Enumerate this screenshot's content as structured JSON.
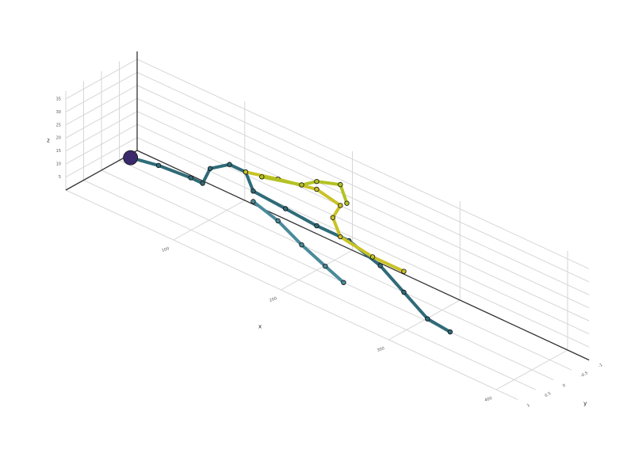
{
  "chart_data": {
    "type": "scatter3d",
    "axis_labels": {
      "x": "x",
      "y": "y",
      "z": "z"
    },
    "xlim": [
      0,
      420
    ],
    "xticks": [
      100,
      200,
      300,
      400
    ],
    "ylim": [
      -1,
      1
    ],
    "yticks": [
      -1,
      -0.5,
      0,
      0.5,
      1
    ],
    "zlim": [
      0,
      38
    ],
    "zticks": [
      5,
      10,
      15,
      20,
      25,
      30,
      35
    ],
    "grid": true,
    "series": [
      {
        "color": "#2f6b78",
        "x": [
          27,
          53,
          83,
          94,
          101,
          119,
          134,
          141,
          171,
          200,
          230,
          259,
          281,
          303,
          324
        ],
        "y": [
          0,
          0,
          0,
          0,
          0,
          0,
          0,
          0,
          0,
          0,
          0,
          0,
          0,
          0,
          0
        ],
        "z": [
          10,
          12,
          13,
          13,
          20,
          25,
          25,
          19,
          18,
          17,
          17,
          13,
          7,
          1,
          0
        ]
      },
      {
        "color": "#c9c227",
        "x": [
          134,
          164,
          200,
          222,
          215,
          222,
          252,
          281
        ],
        "y": [
          0,
          0,
          0,
          0,
          0,
          0,
          0,
          0
        ],
        "z": [
          25,
          28,
          31,
          29,
          23,
          17,
          15,
          15
        ]
      },
      {
        "color": "#b3c224",
        "x": [
          149,
          186,
          200,
          222,
          228
        ],
        "y": [
          0,
          0,
          0,
          0,
          0
        ],
        "z": [
          26,
          30,
          34,
          37,
          31
        ]
      },
      {
        "color": "#4a8a9a",
        "x": [
          141,
          164,
          186,
          208,
          225
        ],
        "y": [
          0,
          0,
          0,
          0,
          0
        ],
        "z": [
          15,
          12,
          7,
          3,
          0
        ]
      }
    ]
  }
}
